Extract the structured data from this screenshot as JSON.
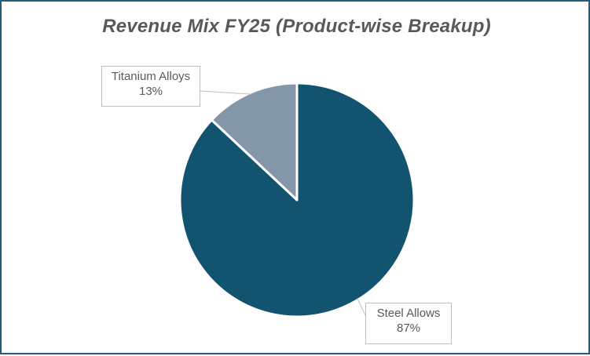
{
  "chart_data": {
    "type": "pie",
    "title": "Revenue Mix FY25 (Product-wise Breakup)",
    "categories": [
      "Steel Allows",
      "Titanium Alloys"
    ],
    "values": [
      87,
      13
    ],
    "value_labels": [
      "87%",
      "13%"
    ],
    "colors": [
      "#12536f",
      "#8497a8"
    ],
    "legend": "none"
  }
}
